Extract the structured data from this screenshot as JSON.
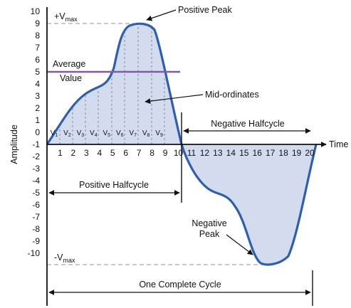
{
  "axis": {
    "y_label": "Amplitude",
    "x_label": "Time",
    "y_ticks": [
      "10",
      "9",
      "8",
      "7",
      "6",
      "5",
      "4",
      "3",
      "2",
      "1",
      "0",
      "-1",
      "-2",
      "-3",
      "-4",
      "-5",
      "-6",
      "-7",
      "-8",
      "-9",
      "-10"
    ],
    "x_ticks": [
      "1",
      "2",
      "3",
      "4",
      "5",
      "6",
      "7",
      "8",
      "9",
      "10",
      "11",
      "12",
      "13",
      "14",
      "15",
      "16",
      "17",
      "18",
      "19",
      "20"
    ]
  },
  "labels": {
    "vmax_prefix": "+V",
    "vmax_sub": "max",
    "vmin_prefix": "-V",
    "vmin_sub": "max",
    "positive_peak": "Positive Peak",
    "average_line1": "Average",
    "average_line2": "Value",
    "mid_ordinates": "Mid-ordinates",
    "negative_halfcycle": "Negative Halfcycle",
    "positive_halfcycle": "Positive Halfcycle",
    "negative_peak_line1": "Negative",
    "negative_peak_line2": "Peak",
    "one_complete_cycle": "One Complete Cycle"
  },
  "mid_ordinates": [
    {
      "v": "V",
      "n": "1"
    },
    {
      "v": "V",
      "n": "2"
    },
    {
      "v": "V",
      "n": "3"
    },
    {
      "v": "V",
      "n": "4"
    },
    {
      "v": "V",
      "n": "5"
    },
    {
      "v": "V",
      "n": "6"
    },
    {
      "v": "V",
      "n": "7"
    },
    {
      "v": "V",
      "n": "8"
    },
    {
      "v": "V",
      "n": "9"
    }
  ],
  "colors": {
    "waveform": "#2e5fae",
    "fill": "#d2dcee",
    "average": "#7f5aa8",
    "dashed": "#a9a9a9",
    "text": "#111111"
  }
}
